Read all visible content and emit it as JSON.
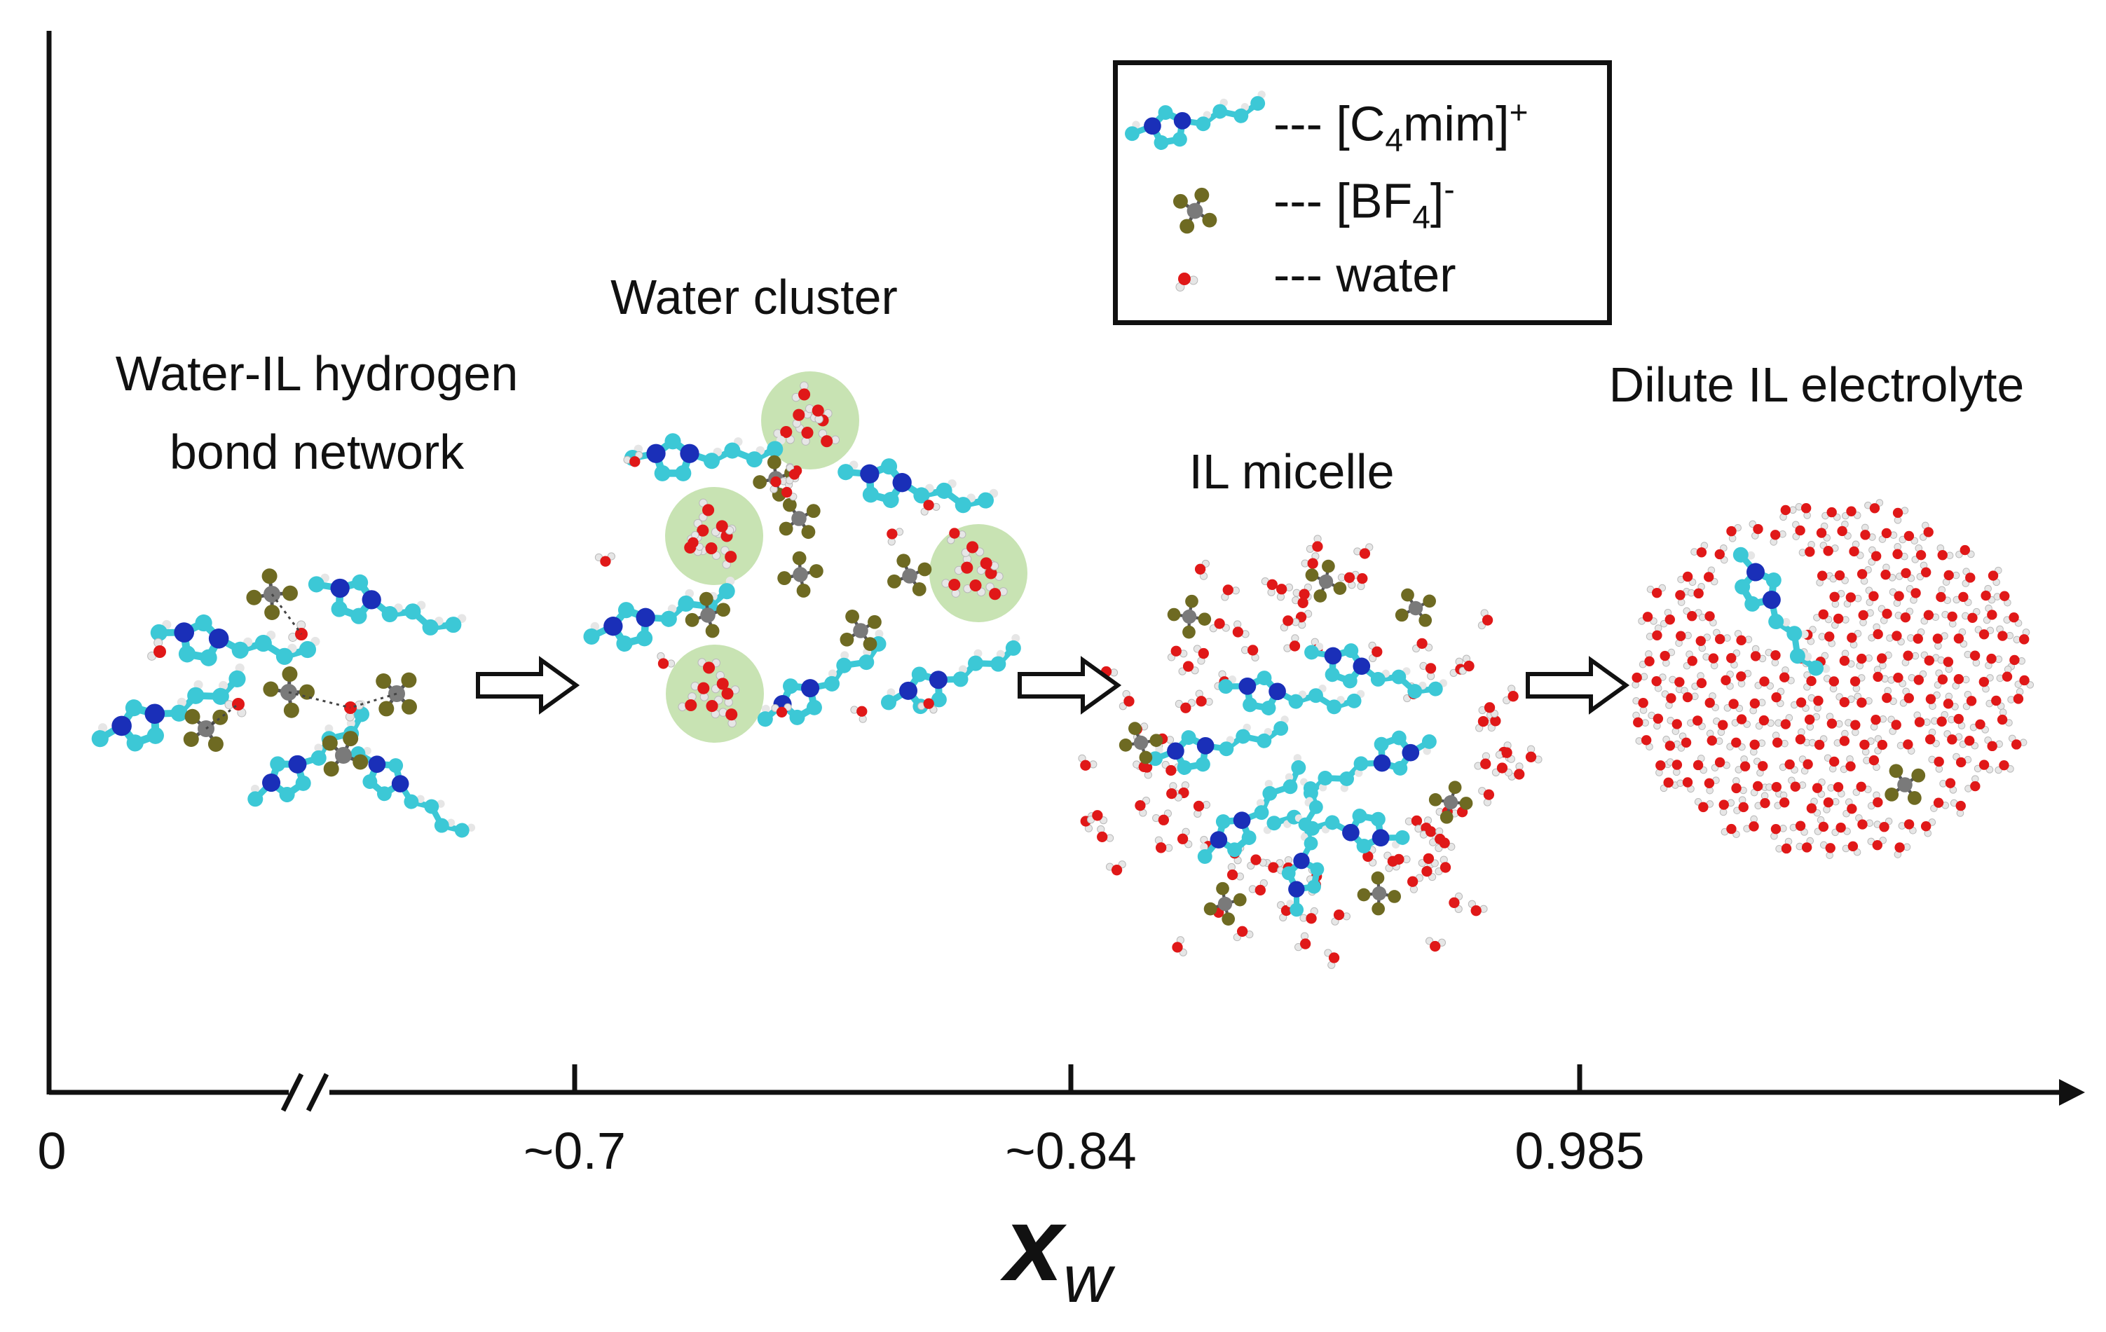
{
  "stages": {
    "network": {
      "line1": "Water-IL hydrogen",
      "line2": "bond network"
    },
    "cluster": {
      "label": "Water cluster"
    },
    "micelle": {
      "label": "IL micelle"
    },
    "dilute": {
      "label": "Dilute IL electrolyte"
    }
  },
  "legend": {
    "cation": {
      "prefix": "--- [C",
      "sub": "4",
      "mid": "mim]",
      "sup": "+"
    },
    "anion": {
      "prefix": "--- [BF",
      "sub": "4",
      "mid": "]",
      "sup": "-"
    },
    "water": {
      "text": "--- water"
    }
  },
  "axis": {
    "symbol": "x",
    "symbol_sub": "w",
    "ticks": [
      "0",
      "~0.7",
      "~0.84",
      "0.985"
    ]
  },
  "colors": {
    "cation_carbon": "#3cc8d6",
    "cation_nitrogen": "#1a2fb8",
    "anion_boron": "#7a7a7a",
    "anion_fluorine": "#6e6a22",
    "water_oxygen": "#e01818",
    "hydrogen": "#e6e6e6",
    "cluster_highlight": "#b6d99a"
  },
  "icons": [
    "cation-molecule-icon",
    "anion-molecule-icon",
    "water-molecule-icon",
    "arrow-right-icon"
  ]
}
